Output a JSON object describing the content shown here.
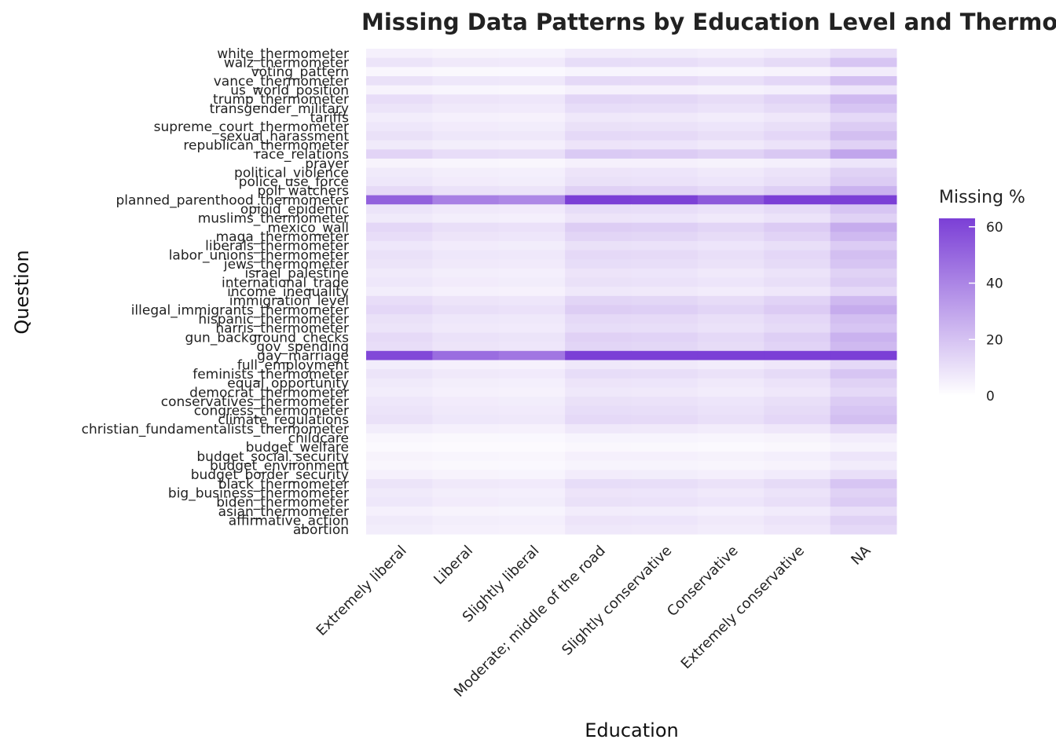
{
  "chart_data": {
    "type": "heatmap",
    "title": "Missing Data Patterns by Education Level and Thermometer Question",
    "xlabel": "Education",
    "ylabel": "Question",
    "legend": {
      "title": "Missing %",
      "ticks": [
        0,
        20,
        40,
        60
      ],
      "range": [
        0,
        63
      ],
      "low_color": "#ffffff",
      "high_color": "#7b3fd6",
      "placement": "right"
    },
    "x_categories": [
      "Extremely liberal",
      "Liberal",
      "Slightly liberal",
      "Moderate; middle of the road",
      "Slightly conservative",
      "Conservative",
      "Extremely conservative",
      "NA"
    ],
    "y_categories": [
      "white_thermometer",
      "walz_thermometer",
      "voting_pattern",
      "vance_thermometer",
      "us_world_position",
      "trump_thermometer",
      "transgender_military",
      "tariffs",
      "supreme_court_thermometer",
      "sexual_harassment",
      "republican_thermometer",
      "race_relations",
      "prayer",
      "political_violence",
      "police_use_force",
      "poll_watchers",
      "planned_parenthood_thermometer",
      "opioid_epidemic",
      "muslims_thermometer",
      "mexico_wall",
      "maga_thermometer",
      "liberals_thermometer",
      "labor_unions_thermometer",
      "jews_thermometer",
      "israel_palestine",
      "international_trade",
      "income_inequality",
      "immigration_level",
      "illegal_immigrants_thermometer",
      "hispanic_thermometer",
      "harris_thermometer",
      "gun_background_checks",
      "gov_spending",
      "gay_marriage",
      "full_employment",
      "feminists_thermometer",
      "equal_opportunity",
      "democrat_thermometer",
      "conservatives_thermometer",
      "congress_thermometer",
      "climate_regulations",
      "christian_fundamentalists_thermometer",
      "childcare",
      "budget_welfare",
      "budget_social_security",
      "budget_environment",
      "budget_border_security",
      "black_thermometer",
      "big_business_thermometer",
      "biden_thermometer",
      "asian_thermometer",
      "affirmative_action",
      "abortion"
    ],
    "row_base": [
      5,
      9,
      3,
      10,
      4,
      11,
      9,
      6,
      8,
      10,
      7,
      14,
      4,
      7,
      8,
      12,
      52,
      9,
      7,
      13,
      11,
      8,
      10,
      9,
      7,
      8,
      6,
      11,
      13,
      10,
      9,
      12,
      11,
      60,
      6,
      9,
      7,
      6,
      8,
      9,
      10,
      6,
      3,
      2,
      4,
      3,
      5,
      9,
      7,
      8,
      5,
      7,
      6
    ],
    "column_weights": [
      1.0,
      0.8,
      0.75,
      1.25,
      1.2,
      1.05,
      1.3,
      2.1
    ]
  }
}
